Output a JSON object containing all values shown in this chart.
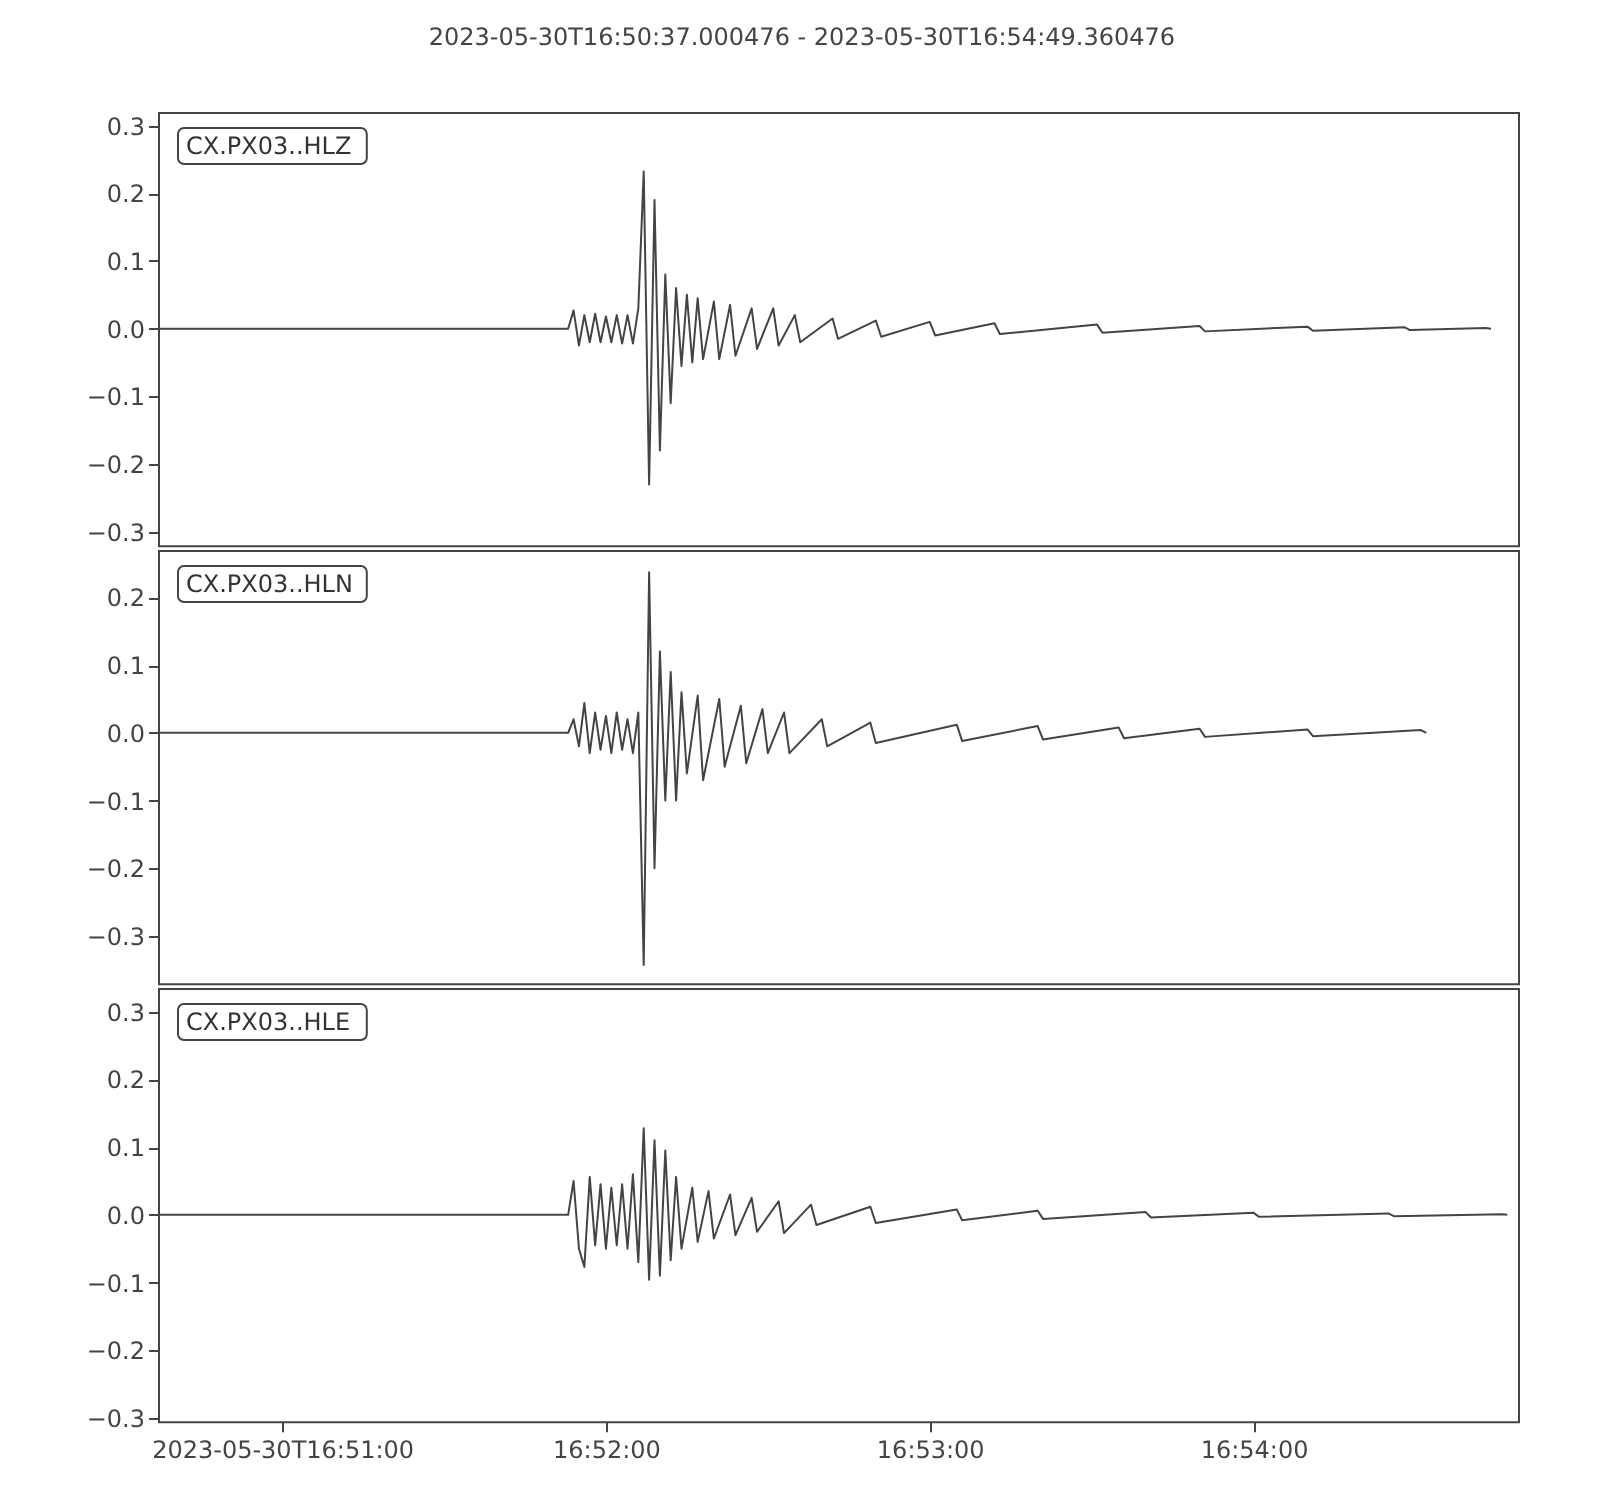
{
  "chart_data": [
    {
      "type": "line",
      "title": "2023-05-30T16:50:37.000476  -  2023-05-30T16:54:49.360476",
      "tick_labels": "y",
      "xlim": [
        "2023-05-30T16:50:37",
        "2023-05-30T16:54:49"
      ],
      "ylim": [
        -0.32,
        0.32
      ],
      "yticks": [
        {
          "value": -0.3,
          "label": "−0.3"
        },
        {
          "value": -0.2,
          "label": "−0.2"
        },
        {
          "value": -0.1,
          "label": "−0.1"
        },
        {
          "value": 0,
          "label": "0.0"
        },
        {
          "value": 0.1,
          "label": "0.1"
        },
        {
          "value": 0.2,
          "label": "0.2"
        },
        {
          "value": 0.3,
          "label": "0.3"
        }
      ],
      "series": [
        {
          "name": "CX.PX03..HLZ",
          "color": "#444444",
          "x": [
            "2023-05-30T16:50:37",
            "2023-05-30T16:51:53",
            "2023-05-30T16:51:54",
            "2023-05-30T16:51:55",
            "2023-05-30T16:51:56",
            "2023-05-30T16:51:57",
            "2023-05-30T16:51:58",
            "2023-05-30T16:51:59",
            "2023-05-30T16:52:00",
            "2023-05-30T16:52:01",
            "2023-05-30T16:52:02",
            "2023-05-30T16:52:03",
            "2023-05-30T16:52:04",
            "2023-05-30T16:52:05",
            "2023-05-30T16:52:06",
            "2023-05-30T16:52:07",
            "2023-05-30T16:52:08",
            "2023-05-30T16:52:09",
            "2023-05-30T16:52:10",
            "2023-05-30T16:52:11",
            "2023-05-30T16:52:12",
            "2023-05-30T16:52:13",
            "2023-05-30T16:52:14",
            "2023-05-30T16:52:15",
            "2023-05-30T16:52:16",
            "2023-05-30T16:52:17",
            "2023-05-30T16:52:18",
            "2023-05-30T16:52:20",
            "2023-05-30T16:52:21",
            "2023-05-30T16:52:23",
            "2023-05-30T16:52:24",
            "2023-05-30T16:52:27",
            "2023-05-30T16:52:28",
            "2023-05-30T16:52:31",
            "2023-05-30T16:52:32",
            "2023-05-30T16:52:35",
            "2023-05-30T16:52:36",
            "2023-05-30T16:52:42",
            "2023-05-30T16:52:43",
            "2023-05-30T16:52:50",
            "2023-05-30T16:52:51",
            "2023-05-30T16:53:00",
            "2023-05-30T16:53:01",
            "2023-05-30T16:53:12",
            "2023-05-30T16:53:13",
            "2023-05-30T16:53:31",
            "2023-05-30T16:53:32",
            "2023-05-30T16:53:50",
            "2023-05-30T16:53:51",
            "2023-05-30T16:54:10",
            "2023-05-30T16:54:11",
            "2023-05-30T16:54:28",
            "2023-05-30T16:54:29",
            "2023-05-30T16:54:43",
            "2023-05-30T16:54:44"
          ],
          "values": [
            0,
            0,
            0.027,
            -0.025,
            0.02,
            -0.02,
            0.022,
            -0.02,
            0.018,
            -0.02,
            0.02,
            -0.022,
            0.02,
            -0.022,
            0.03,
            0.232,
            -0.23,
            0.19,
            -0.18,
            0.08,
            -0.11,
            0.06,
            -0.055,
            0.05,
            -0.05,
            0.045,
            -0.045,
            0.04,
            -0.045,
            0.035,
            -0.04,
            0.03,
            -0.03,
            0.03,
            -0.025,
            0.02,
            -0.02,
            0.015,
            -0.015,
            0.012,
            -0.012,
            0.01,
            -0.01,
            0.008,
            -0.008,
            0.006,
            -0.006,
            0.004,
            -0.004,
            0.003,
            -0.003,
            0.002,
            -0.002,
            0.001,
            0
          ]
        }
      ]
    },
    {
      "type": "line",
      "tick_labels": "y",
      "xlim": [
        "2023-05-30T16:50:37",
        "2023-05-30T16:54:49"
      ],
      "ylim": [
        -0.37,
        0.27
      ],
      "yticks": [
        {
          "value": -0.3,
          "label": "−0.3"
        },
        {
          "value": -0.2,
          "label": "−0.2"
        },
        {
          "value": -0.1,
          "label": "−0.1"
        },
        {
          "value": 0,
          "label": "0.0"
        },
        {
          "value": 0.1,
          "label": "0.1"
        },
        {
          "value": 0.2,
          "label": "0.2"
        }
      ],
      "series": [
        {
          "name": "CX.PX03..HLN",
          "color": "#444444",
          "x": [
            "2023-05-30T16:50:37",
            "2023-05-30T16:51:53",
            "2023-05-30T16:51:54",
            "2023-05-30T16:51:55",
            "2023-05-30T16:51:56",
            "2023-05-30T16:51:57",
            "2023-05-30T16:51:58",
            "2023-05-30T16:51:59",
            "2023-05-30T16:52:00",
            "2023-05-30T16:52:01",
            "2023-05-30T16:52:02",
            "2023-05-30T16:52:03",
            "2023-05-30T16:52:04",
            "2023-05-30T16:52:05",
            "2023-05-30T16:52:06",
            "2023-05-30T16:52:07",
            "2023-05-30T16:52:08",
            "2023-05-30T16:52:09",
            "2023-05-30T16:52:10",
            "2023-05-30T16:52:11",
            "2023-05-30T16:52:12",
            "2023-05-30T16:52:13",
            "2023-05-30T16:52:14",
            "2023-05-30T16:52:15",
            "2023-05-30T16:52:17",
            "2023-05-30T16:52:18",
            "2023-05-30T16:52:21",
            "2023-05-30T16:52:22",
            "2023-05-30T16:52:25",
            "2023-05-30T16:52:26",
            "2023-05-30T16:52:29",
            "2023-05-30T16:52:30",
            "2023-05-30T16:52:33",
            "2023-05-30T16:52:34",
            "2023-05-30T16:52:40",
            "2023-05-30T16:52:41",
            "2023-05-30T16:52:49",
            "2023-05-30T16:52:50",
            "2023-05-30T16:53:05",
            "2023-05-30T16:53:06",
            "2023-05-30T16:53:20",
            "2023-05-30T16:53:21",
            "2023-05-30T16:53:35",
            "2023-05-30T16:53:36",
            "2023-05-30T16:53:50",
            "2023-05-30T16:53:51",
            "2023-05-30T16:54:10",
            "2023-05-30T16:54:11",
            "2023-05-30T16:54:31",
            "2023-05-30T16:54:32"
          ],
          "values": [
            0,
            0,
            0.02,
            -0.02,
            0.044,
            -0.03,
            0.03,
            -0.025,
            0.025,
            -0.03,
            0.03,
            -0.025,
            0.02,
            -0.03,
            0.03,
            -0.343,
            0.237,
            -0.2,
            0.12,
            -0.1,
            0.09,
            -0.1,
            0.06,
            -0.06,
            0.055,
            -0.07,
            0.05,
            -0.05,
            0.04,
            -0.045,
            0.035,
            -0.03,
            0.03,
            -0.03,
            0.02,
            -0.02,
            0.015,
            -0.015,
            0.012,
            -0.012,
            0.01,
            -0.01,
            0.008,
            -0.008,
            0.006,
            -0.006,
            0.005,
            -0.005,
            0.004,
            0
          ]
        }
      ]
    },
    {
      "type": "line",
      "xlim": [
        "2023-05-30T16:50:37",
        "2023-05-30T16:54:49"
      ],
      "xticks": [
        {
          "value": "2023-05-30T16:51:00",
          "label": "2023-05-30T16:51:00"
        },
        {
          "value": "2023-05-30T16:52:00",
          "label": "16:52:00"
        },
        {
          "value": "2023-05-30T16:53:00",
          "label": "16:53:00"
        },
        {
          "value": "2023-05-30T16:54:00",
          "label": "16:54:00"
        }
      ],
      "ylim": [
        -0.305,
        0.335
      ],
      "yticks": [
        {
          "value": -0.3,
          "label": "−0.3"
        },
        {
          "value": -0.2,
          "label": "−0.2"
        },
        {
          "value": -0.1,
          "label": "−0.1"
        },
        {
          "value": 0,
          "label": "0.0"
        },
        {
          "value": 0.1,
          "label": "0.1"
        },
        {
          "value": 0.2,
          "label": "0.2"
        },
        {
          "value": 0.3,
          "label": "0.3"
        }
      ],
      "series": [
        {
          "name": "CX.PX03..HLE",
          "color": "#444444",
          "x": [
            "2023-05-30T16:50:37",
            "2023-05-30T16:51:53",
            "2023-05-30T16:51:54",
            "2023-05-30T16:51:55",
            "2023-05-30T16:51:56",
            "2023-05-30T16:51:57",
            "2023-05-30T16:51:58",
            "2023-05-30T16:51:59",
            "2023-05-30T16:52:00",
            "2023-05-30T16:52:01",
            "2023-05-30T16:52:02",
            "2023-05-30T16:52:03",
            "2023-05-30T16:52:04",
            "2023-05-30T16:52:05",
            "2023-05-30T16:52:06",
            "2023-05-30T16:52:07",
            "2023-05-30T16:52:08",
            "2023-05-30T16:52:09",
            "2023-05-30T16:52:10",
            "2023-05-30T16:52:11",
            "2023-05-30T16:52:12",
            "2023-05-30T16:52:13",
            "2023-05-30T16:52:14",
            "2023-05-30T16:52:16",
            "2023-05-30T16:52:17",
            "2023-05-30T16:52:19",
            "2023-05-30T16:52:20",
            "2023-05-30T16:52:23",
            "2023-05-30T16:52:24",
            "2023-05-30T16:52:27",
            "2023-05-30T16:52:28",
            "2023-05-30T16:52:32",
            "2023-05-30T16:52:33",
            "2023-05-30T16:52:38",
            "2023-05-30T16:52:39",
            "2023-05-30T16:52:49",
            "2023-05-30T16:52:50",
            "2023-05-30T16:53:05",
            "2023-05-30T16:53:06",
            "2023-05-30T16:53:20",
            "2023-05-30T16:53:21",
            "2023-05-30T16:53:40",
            "2023-05-30T16:53:41",
            "2023-05-30T16:54:00",
            "2023-05-30T16:54:01",
            "2023-05-30T16:54:25",
            "2023-05-30T16:54:26",
            "2023-05-30T16:54:46",
            "2023-05-30T16:54:47"
          ],
          "values": [
            0,
            0,
            0.05,
            -0.05,
            -0.077,
            0.056,
            -0.045,
            0.045,
            -0.05,
            0.04,
            -0.045,
            0.045,
            -0.05,
            0.06,
            -0.07,
            0.128,
            -0.096,
            0.11,
            -0.09,
            0.095,
            -0.067,
            0.056,
            -0.05,
            0.04,
            -0.04,
            0.035,
            -0.035,
            0.03,
            -0.03,
            0.025,
            -0.025,
            0.02,
            -0.027,
            0.015,
            -0.015,
            0.012,
            -0.012,
            0.008,
            -0.008,
            0.006,
            -0.006,
            0.004,
            -0.004,
            0.003,
            -0.003,
            0.002,
            -0.002,
            0.001,
            0
          ]
        }
      ]
    }
  ]
}
